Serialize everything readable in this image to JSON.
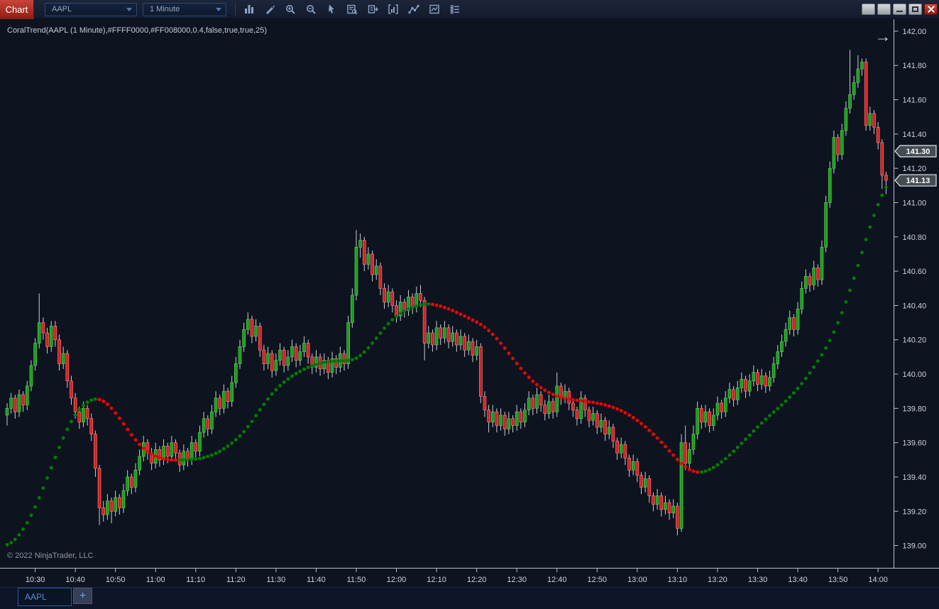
{
  "toolbar": {
    "chart_label": "Chart",
    "symbol": "AAPL",
    "interval": "1 Minute",
    "icons": [
      "bar-chart",
      "drawing-pencil",
      "zoom-in",
      "zoom-out",
      "cursor",
      "data-box",
      "chart-trader",
      "indicators",
      "draw-line",
      "strategy",
      "properties"
    ],
    "window_buttons": [
      "blank",
      "blank",
      "minimize",
      "maximize",
      "close"
    ]
  },
  "chart": {
    "indicator_label": "CoralTrend(AAPL (1 Minute),#FFFF0000,#FF008000,0.4,false,true,true,25)",
    "copyright": "© 2022 NinjaTrader, LLC",
    "go_to_last_glyph": "→",
    "price_badges": [
      {
        "value": "141.30",
        "price": 141.3
      },
      {
        "value": "141.13",
        "price": 141.13
      }
    ]
  },
  "tabs": {
    "items": [
      "AAPL"
    ],
    "add_label": "+"
  },
  "chart_data": {
    "type": "candlestick",
    "symbol": "AAPL",
    "interval": "1 Minute",
    "start_time": "10:23",
    "bar_interval_minutes": 1,
    "x_ticks": [
      "10:30",
      "10:40",
      "10:50",
      "11:00",
      "11:10",
      "11:20",
      "11:30",
      "11:40",
      "11:50",
      "12:00",
      "12:10",
      "12:20",
      "12:30",
      "12:40",
      "12:50",
      "13:00",
      "13:10",
      "13:20",
      "13:30",
      "13:40",
      "13:50",
      "14:00"
    ],
    "y_ticks": [
      "142.00",
      "141.80",
      "141.60",
      "141.40",
      "141.20",
      "141.00",
      "140.80",
      "140.60",
      "140.40",
      "140.20",
      "140.00",
      "139.80",
      "139.60",
      "139.40",
      "139.20",
      "139.00"
    ],
    "ylim": [
      138.87,
      142.07
    ],
    "grid": false,
    "legend": false,
    "overlay": {
      "name": "CoralTrend",
      "up_color": "#008000",
      "down_color": "#FF0000",
      "seed": 139.0,
      "alpha": 0.18,
      "params": "0.4,false,true,true,25"
    },
    "colors": {
      "up": "#18A018",
      "up_stroke": "#6FCF6F",
      "down": "#D62020",
      "down_stroke": "#FF8A8A",
      "wick": "#C8CED8",
      "background": "#0D1420",
      "axis": "#B9C0CA",
      "tick_text": "#CBD2DC"
    },
    "candles": [
      [
        139.76,
        139.83,
        139.7,
        139.8
      ],
      [
        139.8,
        139.89,
        139.77,
        139.86
      ],
      [
        139.86,
        139.88,
        139.74,
        139.78
      ],
      [
        139.78,
        139.91,
        139.75,
        139.88
      ],
      [
        139.88,
        139.9,
        139.78,
        139.82
      ],
      [
        139.82,
        139.96,
        139.79,
        139.93
      ],
      [
        139.93,
        140.08,
        139.9,
        140.05
      ],
      [
        140.05,
        140.21,
        140.02,
        140.18
      ],
      [
        140.18,
        140.47,
        140.15,
        140.3
      ],
      [
        140.3,
        140.33,
        140.2,
        140.24
      ],
      [
        140.24,
        140.27,
        140.12,
        140.16
      ],
      [
        140.16,
        140.31,
        140.13,
        140.28
      ],
      [
        140.28,
        140.31,
        140.16,
        140.2
      ],
      [
        140.2,
        140.23,
        140.02,
        140.06
      ],
      [
        140.06,
        140.16,
        140.03,
        140.12
      ],
      [
        140.12,
        140.14,
        139.92,
        139.96
      ],
      [
        139.96,
        139.99,
        139.82,
        139.86
      ],
      [
        139.86,
        139.89,
        139.74,
        139.78
      ],
      [
        139.78,
        139.81,
        139.68,
        139.72
      ],
      [
        139.72,
        139.84,
        139.69,
        139.8
      ],
      [
        139.8,
        139.82,
        139.7,
        139.74
      ],
      [
        139.74,
        139.77,
        139.61,
        139.65
      ],
      [
        139.65,
        139.67,
        139.4,
        139.45
      ],
      [
        139.45,
        139.47,
        139.12,
        139.22
      ],
      [
        139.22,
        139.26,
        139.14,
        139.18
      ],
      [
        139.18,
        139.3,
        139.15,
        139.26
      ],
      [
        139.26,
        139.28,
        139.13,
        139.2
      ],
      [
        139.2,
        139.32,
        139.17,
        139.28
      ],
      [
        139.28,
        139.3,
        139.18,
        139.22
      ],
      [
        139.22,
        139.36,
        139.19,
        139.32
      ],
      [
        139.32,
        139.44,
        139.29,
        139.4
      ],
      [
        139.4,
        139.42,
        139.3,
        139.34
      ],
      [
        139.34,
        139.48,
        139.31,
        139.44
      ],
      [
        139.44,
        139.56,
        139.41,
        139.52
      ],
      [
        139.52,
        139.64,
        139.49,
        139.6
      ],
      [
        139.6,
        139.62,
        139.5,
        139.54
      ],
      [
        139.54,
        139.57,
        139.44,
        139.48
      ],
      [
        139.48,
        139.6,
        139.45,
        139.56
      ],
      [
        139.56,
        139.58,
        139.46,
        139.5
      ],
      [
        139.5,
        139.62,
        139.47,
        139.58
      ],
      [
        139.58,
        139.6,
        139.48,
        139.52
      ],
      [
        139.52,
        139.64,
        139.49,
        139.6
      ],
      [
        139.6,
        139.62,
        139.5,
        139.54
      ],
      [
        139.54,
        139.56,
        139.43,
        139.47
      ],
      [
        139.47,
        139.59,
        139.44,
        139.55
      ],
      [
        139.55,
        139.57,
        139.46,
        139.5
      ],
      [
        139.5,
        139.64,
        139.47,
        139.6
      ],
      [
        139.6,
        139.62,
        139.51,
        139.55
      ],
      [
        139.55,
        139.7,
        139.52,
        139.66
      ],
      [
        139.66,
        139.78,
        139.63,
        139.74
      ],
      [
        139.74,
        139.76,
        139.64,
        139.68
      ],
      [
        139.68,
        139.82,
        139.65,
        139.78
      ],
      [
        139.78,
        139.9,
        139.75,
        139.86
      ],
      [
        139.86,
        139.88,
        139.76,
        139.8
      ],
      [
        139.8,
        139.94,
        139.77,
        139.9
      ],
      [
        139.9,
        139.92,
        139.8,
        139.84
      ],
      [
        139.84,
        139.99,
        139.81,
        139.95
      ],
      [
        139.95,
        140.1,
        139.92,
        140.06
      ],
      [
        140.06,
        140.2,
        140.03,
        140.16
      ],
      [
        140.16,
        140.3,
        140.13,
        140.26
      ],
      [
        140.26,
        140.36,
        140.23,
        140.32
      ],
      [
        140.32,
        140.34,
        140.18,
        140.22
      ],
      [
        140.22,
        140.32,
        140.19,
        140.28
      ],
      [
        140.28,
        140.3,
        140.1,
        140.14
      ],
      [
        140.14,
        140.17,
        140.02,
        140.06
      ],
      [
        140.06,
        140.16,
        140.03,
        140.12
      ],
      [
        140.12,
        140.14,
        139.98,
        140.02
      ],
      [
        140.02,
        140.12,
        139.99,
        140.08
      ],
      [
        140.08,
        140.18,
        140.05,
        140.14
      ],
      [
        140.14,
        140.16,
        140.01,
        140.05
      ],
      [
        140.05,
        140.14,
        140.02,
        140.1
      ],
      [
        140.1,
        140.2,
        140.07,
        140.16
      ],
      [
        140.16,
        140.18,
        140.04,
        140.08
      ],
      [
        140.08,
        140.17,
        140.05,
        140.13
      ],
      [
        140.13,
        140.22,
        140.1,
        140.18
      ],
      [
        140.18,
        140.2,
        140.06,
        140.1
      ],
      [
        140.1,
        140.12,
        140.0,
        140.04
      ],
      [
        140.04,
        140.14,
        140.01,
        140.1
      ],
      [
        140.1,
        140.12,
        139.99,
        140.03
      ],
      [
        140.03,
        140.12,
        140.0,
        140.08
      ],
      [
        140.08,
        140.1,
        139.97,
        140.01
      ],
      [
        140.01,
        140.13,
        139.98,
        140.09
      ],
      [
        140.09,
        140.11,
        140.0,
        140.04
      ],
      [
        140.04,
        140.16,
        140.01,
        140.12
      ],
      [
        140.12,
        140.14,
        140.02,
        140.06
      ],
      [
        140.06,
        140.34,
        140.03,
        140.3
      ],
      [
        140.3,
        140.5,
        140.27,
        140.46
      ],
      [
        140.46,
        140.84,
        140.43,
        140.74
      ],
      [
        140.74,
        140.82,
        140.68,
        140.78
      ],
      [
        140.78,
        140.8,
        140.6,
        140.64
      ],
      [
        140.64,
        140.74,
        140.61,
        140.7
      ],
      [
        140.7,
        140.72,
        140.54,
        140.58
      ],
      [
        140.58,
        140.67,
        140.55,
        140.63
      ],
      [
        140.63,
        140.65,
        140.46,
        140.5
      ],
      [
        140.5,
        140.53,
        140.38,
        140.42
      ],
      [
        140.42,
        140.52,
        140.39,
        140.48
      ],
      [
        140.48,
        140.5,
        140.36,
        140.4
      ],
      [
        140.4,
        140.43,
        140.3,
        140.34
      ],
      [
        140.34,
        140.46,
        140.31,
        140.42
      ],
      [
        140.42,
        140.44,
        140.33,
        140.37
      ],
      [
        140.37,
        140.49,
        140.34,
        140.45
      ],
      [
        140.45,
        140.47,
        140.35,
        140.39
      ],
      [
        140.39,
        140.51,
        140.36,
        140.47
      ],
      [
        140.47,
        140.52,
        140.39,
        140.43
      ],
      [
        140.43,
        140.45,
        140.08,
        140.18
      ],
      [
        140.18,
        140.28,
        140.15,
        140.24
      ],
      [
        140.24,
        140.26,
        140.13,
        140.17
      ],
      [
        140.17,
        140.31,
        140.14,
        140.27
      ],
      [
        140.27,
        140.29,
        140.17,
        140.21
      ],
      [
        140.21,
        140.31,
        140.18,
        140.27
      ],
      [
        140.27,
        140.29,
        140.15,
        140.19
      ],
      [
        140.19,
        140.28,
        140.16,
        140.24
      ],
      [
        140.24,
        140.26,
        140.13,
        140.17
      ],
      [
        140.17,
        140.26,
        140.14,
        140.22
      ],
      [
        140.22,
        140.24,
        140.1,
        140.14
      ],
      [
        140.14,
        140.23,
        140.11,
        140.19
      ],
      [
        140.19,
        140.21,
        140.07,
        140.11
      ],
      [
        140.11,
        140.2,
        140.08,
        140.16
      ],
      [
        140.16,
        140.18,
        139.83,
        139.87
      ],
      [
        139.87,
        139.9,
        139.75,
        139.79
      ],
      [
        139.79,
        139.82,
        139.66,
        139.72
      ],
      [
        139.72,
        139.82,
        139.69,
        139.78
      ],
      [
        139.78,
        139.8,
        139.66,
        139.7
      ],
      [
        139.7,
        139.8,
        139.67,
        139.76
      ],
      [
        139.76,
        139.78,
        139.64,
        139.68
      ],
      [
        139.68,
        139.78,
        139.65,
        139.74
      ],
      [
        139.74,
        139.76,
        139.66,
        139.7
      ],
      [
        139.7,
        139.82,
        139.67,
        139.78
      ],
      [
        139.78,
        139.8,
        139.68,
        139.72
      ],
      [
        139.72,
        139.83,
        139.69,
        139.79
      ],
      [
        139.79,
        139.9,
        139.76,
        139.86
      ],
      [
        139.86,
        139.88,
        139.76,
        139.8
      ],
      [
        139.8,
        139.92,
        139.77,
        139.88
      ],
      [
        139.88,
        139.9,
        139.78,
        139.82
      ],
      [
        139.82,
        139.85,
        139.73,
        139.77
      ],
      [
        139.77,
        139.88,
        139.74,
        139.84
      ],
      [
        139.84,
        139.86,
        139.74,
        139.78
      ],
      [
        139.78,
        140.01,
        139.75,
        139.93
      ],
      [
        139.93,
        139.95,
        139.82,
        139.86
      ],
      [
        139.86,
        139.94,
        139.83,
        139.9
      ],
      [
        139.9,
        139.92,
        139.79,
        139.83
      ],
      [
        139.83,
        139.85,
        139.75,
        139.79
      ],
      [
        139.79,
        139.81,
        139.7,
        139.74
      ],
      [
        139.74,
        139.9,
        139.71,
        139.86
      ],
      [
        139.86,
        139.88,
        139.75,
        139.79
      ],
      [
        139.79,
        139.81,
        139.69,
        139.73
      ],
      [
        139.73,
        139.81,
        139.7,
        139.77
      ],
      [
        139.77,
        139.79,
        139.65,
        139.69
      ],
      [
        139.69,
        139.77,
        139.66,
        139.73
      ],
      [
        139.73,
        139.75,
        139.61,
        139.65
      ],
      [
        139.65,
        139.73,
        139.62,
        139.69
      ],
      [
        139.69,
        139.71,
        139.57,
        139.61
      ],
      [
        139.61,
        139.63,
        139.5,
        139.54
      ],
      [
        139.54,
        139.63,
        139.51,
        139.59
      ],
      [
        139.59,
        139.61,
        139.47,
        139.51
      ],
      [
        139.51,
        139.53,
        139.4,
        139.44
      ],
      [
        139.44,
        139.53,
        139.41,
        139.49
      ],
      [
        139.49,
        139.51,
        139.37,
        139.41
      ],
      [
        139.41,
        139.43,
        139.3,
        139.34
      ],
      [
        139.34,
        139.43,
        139.31,
        139.39
      ],
      [
        139.39,
        139.41,
        139.25,
        139.29
      ],
      [
        139.29,
        139.31,
        139.2,
        139.24
      ],
      [
        139.24,
        139.33,
        139.21,
        139.29
      ],
      [
        139.29,
        139.31,
        139.17,
        139.21
      ],
      [
        139.21,
        139.29,
        139.18,
        139.25
      ],
      [
        139.25,
        139.27,
        139.15,
        139.19
      ],
      [
        139.19,
        139.27,
        139.16,
        139.23
      ],
      [
        139.23,
        139.25,
        139.06,
        139.1
      ],
      [
        139.1,
        139.65,
        139.08,
        139.6
      ],
      [
        139.6,
        139.7,
        139.44,
        139.48
      ],
      [
        139.48,
        139.6,
        139.45,
        139.56
      ],
      [
        139.56,
        139.7,
        139.53,
        139.65
      ],
      [
        139.65,
        139.84,
        139.62,
        139.8
      ],
      [
        139.8,
        139.82,
        139.68,
        139.72
      ],
      [
        139.72,
        139.82,
        139.69,
        139.78
      ],
      [
        139.78,
        139.8,
        139.66,
        139.7
      ],
      [
        139.7,
        139.8,
        139.67,
        139.76
      ],
      [
        139.76,
        139.87,
        139.73,
        139.83
      ],
      [
        139.83,
        139.85,
        139.74,
        139.78
      ],
      [
        139.78,
        139.9,
        139.75,
        139.86
      ],
      [
        139.86,
        139.95,
        139.83,
        139.91
      ],
      [
        139.91,
        139.93,
        139.81,
        139.85
      ],
      [
        139.85,
        139.96,
        139.82,
        139.92
      ],
      [
        139.92,
        140.01,
        139.89,
        139.97
      ],
      [
        139.97,
        139.99,
        139.86,
        139.9
      ],
      [
        139.9,
        140.0,
        139.87,
        139.96
      ],
      [
        139.96,
        140.05,
        139.93,
        140.01
      ],
      [
        140.01,
        140.03,
        139.9,
        139.94
      ],
      [
        139.94,
        140.03,
        139.91,
        139.99
      ],
      [
        139.99,
        140.01,
        139.89,
        139.93
      ],
      [
        139.93,
        140.02,
        139.9,
        139.98
      ],
      [
        139.98,
        140.1,
        139.95,
        140.06
      ],
      [
        140.06,
        140.17,
        140.03,
        140.13
      ],
      [
        140.13,
        140.23,
        140.1,
        140.19
      ],
      [
        140.19,
        140.3,
        140.16,
        140.26
      ],
      [
        140.26,
        140.37,
        140.23,
        140.33
      ],
      [
        140.33,
        140.35,
        140.22,
        140.26
      ],
      [
        140.26,
        140.42,
        140.23,
        140.38
      ],
      [
        140.38,
        140.54,
        140.35,
        140.5
      ],
      [
        140.5,
        140.61,
        140.47,
        140.57
      ],
      [
        140.57,
        140.59,
        140.48,
        140.52
      ],
      [
        140.52,
        140.66,
        140.49,
        140.62
      ],
      [
        140.62,
        140.64,
        140.51,
        140.55
      ],
      [
        140.55,
        140.78,
        140.52,
        140.74
      ],
      [
        140.74,
        141.04,
        140.71,
        141.0
      ],
      [
        141.0,
        141.24,
        140.97,
        141.2
      ],
      [
        141.2,
        141.42,
        141.17,
        141.38
      ],
      [
        141.38,
        141.4,
        141.24,
        141.28
      ],
      [
        141.28,
        141.46,
        141.25,
        141.42
      ],
      [
        141.42,
        141.59,
        141.39,
        141.55
      ],
      [
        141.55,
        141.89,
        141.52,
        141.63
      ],
      [
        141.63,
        141.74,
        141.6,
        141.7
      ],
      [
        141.7,
        141.86,
        141.67,
        141.78
      ],
      [
        141.78,
        141.84,
        141.74,
        141.82
      ],
      [
        141.82,
        141.84,
        141.42,
        141.45
      ],
      [
        141.45,
        141.56,
        141.42,
        141.52
      ],
      [
        141.52,
        141.54,
        141.4,
        141.44
      ],
      [
        141.44,
        141.47,
        141.31,
        141.35
      ],
      [
        141.35,
        141.37,
        141.08,
        141.16
      ],
      [
        141.16,
        141.18,
        141.05,
        141.13
      ]
    ]
  }
}
